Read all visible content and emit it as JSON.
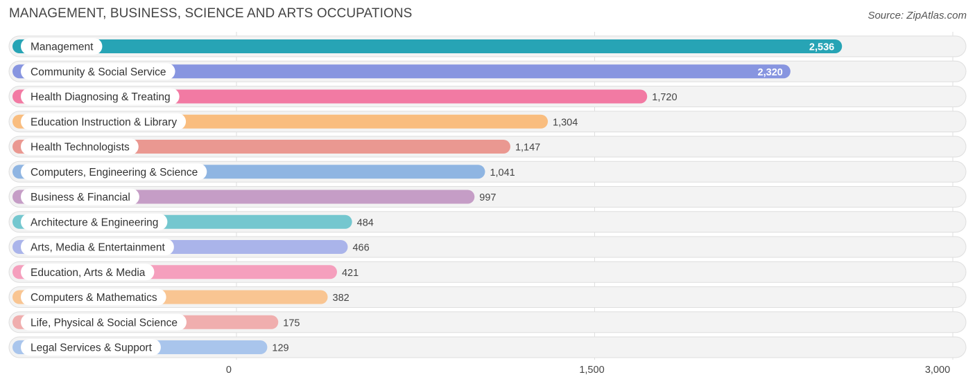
{
  "title": "MANAGEMENT, BUSINESS, SCIENCE AND ARTS OCCUPATIONS",
  "source": "Source: ZipAtlas.com",
  "chart_data": {
    "type": "bar",
    "orientation": "horizontal",
    "categories": [
      "Management",
      "Community & Social Service",
      "Health Diagnosing & Treating",
      "Education Instruction & Library",
      "Health Technologists",
      "Computers, Engineering & Science",
      "Business & Financial",
      "Architecture & Engineering",
      "Arts, Media & Entertainment",
      "Education, Arts & Media",
      "Computers & Mathematics",
      "Life, Physical & Social Science",
      "Legal Services & Support"
    ],
    "values": [
      2536,
      2320,
      1720,
      1304,
      1147,
      1041,
      997,
      484,
      466,
      421,
      382,
      175,
      129
    ],
    "value_labels": [
      "2,536",
      "2,320",
      "1,720",
      "1,304",
      "1,147",
      "1,041",
      "997",
      "484",
      "466",
      "421",
      "382",
      "175",
      "129"
    ],
    "colors": [
      "#27a4b5",
      "#8795e0",
      "#f27aa3",
      "#f9bd7f",
      "#ea9891",
      "#8fb5e2",
      "#c59dc6",
      "#74c7cf",
      "#aab4ea",
      "#f59fbd",
      "#f9c592",
      "#f0aeae",
      "#a9c5ec"
    ],
    "xlim": [
      0,
      3000
    ],
    "xticks": [
      0,
      1500,
      3000
    ],
    "xtick_labels": [
      "0",
      "1,500",
      "3,000"
    ],
    "grid": true
  }
}
